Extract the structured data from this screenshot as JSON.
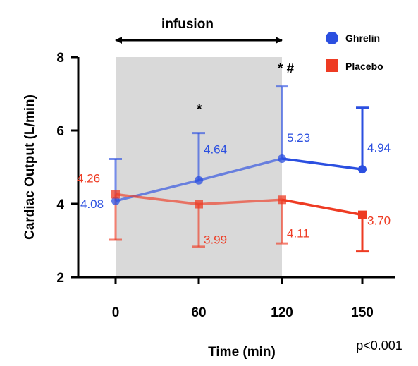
{
  "chart_data": {
    "type": "line",
    "ylabel": "Cardiac Output (L/min)",
    "xlabel": "Time (min)",
    "x": [
      0,
      60,
      120,
      150
    ],
    "x_tick_labels": [
      "0",
      "60",
      "120",
      "150"
    ],
    "y_ticks": [
      2,
      4,
      6,
      8
    ],
    "ylim": [
      2,
      8
    ],
    "shaded_region": {
      "label": "infusion",
      "x_start": 0,
      "x_end": 120,
      "color": "#d9d9d9"
    },
    "legend": {
      "placement": "top-right"
    },
    "series": [
      {
        "name": "Ghrelin",
        "color": "#2b4fe0",
        "marker": "circle",
        "values": [
          4.08,
          4.64,
          5.23,
          4.94
        ],
        "value_labels": [
          "4.08",
          "4.64",
          "5.23",
          "4.94"
        ],
        "error_upper": [
          5.22,
          5.93,
          7.2,
          6.62
        ]
      },
      {
        "name": "Placebo",
        "color": "#ee3b23",
        "marker": "square",
        "values": [
          4.26,
          3.99,
          4.11,
          3.7
        ],
        "value_labels": [
          "4.26",
          "3.99",
          "4.11",
          "3.70"
        ],
        "error_lower": [
          3.02,
          2.83,
          2.92,
          2.7
        ]
      }
    ],
    "annotations": [
      {
        "text": "*",
        "x": 60
      },
      {
        "text": "* #",
        "x": 120
      }
    ],
    "note": "p<0.001"
  }
}
